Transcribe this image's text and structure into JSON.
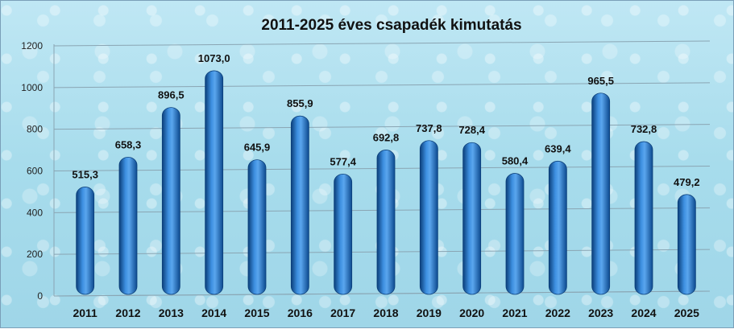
{
  "chart_data": {
    "type": "bar",
    "title": "2011-2025 éves  csapadék kimutatás",
    "xlabel": "",
    "ylabel": "",
    "categories": [
      "2011",
      "2012",
      "2013",
      "2014",
      "2015",
      "2016",
      "2017",
      "2018",
      "2019",
      "2020",
      "2021",
      "2022",
      "2023",
      "2024",
      "2025"
    ],
    "values": [
      515.3,
      658.3,
      896.5,
      1073.0,
      645.9,
      855.9,
      577.4,
      692.8,
      737.8,
      728.4,
      580.4,
      639.4,
      965.5,
      732.8,
      479.2
    ],
    "data_labels": [
      "515,3",
      "658,3",
      "896,5",
      "1073,0",
      "645,9",
      "855,9",
      "577,4",
      "692,8",
      "737,8",
      "728,4",
      "580,4",
      "639,4",
      "965,5",
      "732,8",
      "479,2"
    ],
    "yticks": [
      "0",
      "200",
      "400",
      "600",
      "800",
      "1000",
      "1200"
    ],
    "ylim": [
      0,
      1200
    ],
    "grid": true,
    "legend": "none",
    "colors": {
      "bar": "#1f6fc4",
      "bar_dark": "#0b3f7a",
      "bar_light": "#5aa6ee",
      "grid": "#8aa5b3"
    }
  }
}
